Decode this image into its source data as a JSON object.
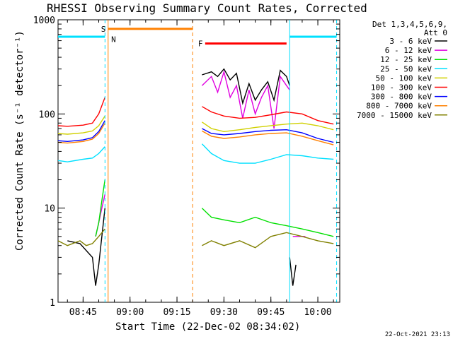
{
  "chart_data": {
    "type": "line",
    "title": "RHESSI Observing Summary Count Rates, Corrected",
    "xlabel": "Start Time (22-Dec-02 08:34:02)",
    "ylabel": "Corrected Count Rate (s⁻¹ detector⁻¹)",
    "ylog": true,
    "xlim": [
      "08:37",
      "10:07"
    ],
    "ylim": [
      1,
      1000
    ],
    "x_ticks": [
      "08:45",
      "09:00",
      "09:15",
      "09:30",
      "09:45",
      "10:00"
    ],
    "y_ticks": [
      "1",
      "10",
      "100",
      "1000"
    ],
    "legend_header": [
      "Det 1,3,4,5,6,9,",
      "Att 0"
    ],
    "legend_position": "outside-right",
    "series": [
      {
        "name": "3 - 6 keV",
        "color": "#000000",
        "segments": [
          {
            "x": [
              "08:40",
              "08:44",
              "08:48",
              "08:49",
              "08:50",
              "08:51",
              "08:52"
            ],
            "y": [
              4.5,
              4.2,
              3.0,
              1.5,
              2.5,
              5,
              10
            ]
          },
          {
            "x": [
              "09:23",
              "09:26",
              "09:28",
              "09:30",
              "09:32",
              "09:34",
              "09:36",
              "09:38",
              "09:40",
              "09:42",
              "09:44",
              "09:46",
              "09:48",
              "09:50",
              "09:51"
            ],
            "y": [
              260,
              280,
              250,
              300,
              230,
              270,
              130,
              210,
              140,
              180,
              220,
              140,
              290,
              250,
              200
            ]
          },
          {
            "x": [
              "09:51",
              "09:52",
              "09:53"
            ],
            "y": [
              3,
              1.5,
              2.5
            ]
          }
        ]
      },
      {
        "name": "6 - 12 keV",
        "color": "#e000e0",
        "segments": [
          {
            "x": [
              "08:49",
              "08:50",
              "08:51",
              "08:52"
            ],
            "y": [
              5,
              7,
              10,
              14
            ]
          },
          {
            "x": [
              "09:23",
              "09:26",
              "09:28",
              "09:30",
              "09:32",
              "09:34",
              "09:36",
              "09:38",
              "09:40",
              "09:42",
              "09:44",
              "09:46",
              "09:48",
              "09:50",
              "09:51"
            ],
            "y": [
              200,
              250,
              170,
              280,
              150,
              200,
              90,
              180,
              100,
              150,
              200,
              70,
              250,
              200,
              180
            ]
          },
          {
            "x": [
              "09:52",
              "09:56"
            ],
            "y": [
              5,
              5
            ]
          }
        ]
      },
      {
        "name": "12 - 25 keV",
        "color": "#00e000",
        "segments": [
          {
            "x": [
              "08:49",
              "08:50",
              "08:51",
              "08:52"
            ],
            "y": [
              5,
              7,
              12,
              20
            ]
          },
          {
            "x": [
              "09:23",
              "09:26",
              "09:30",
              "09:35",
              "09:40",
              "09:45",
              "09:50",
              "09:55",
              "10:00",
              "10:05"
            ],
            "y": [
              10,
              8,
              7.5,
              7,
              8,
              7,
              6.5,
              6,
              5.5,
              5
            ]
          }
        ]
      },
      {
        "name": "25 - 50 keV",
        "color": "#00e0ff",
        "segments": [
          {
            "x": [
              "08:37",
              "08:40",
              "08:45",
              "08:48",
              "08:50",
              "08:52"
            ],
            "y": [
              32,
              31,
              33,
              34,
              38,
              45
            ]
          },
          {
            "x": [
              "09:23",
              "09:26",
              "09:30",
              "09:35",
              "09:40",
              "09:45",
              "09:50",
              "09:55",
              "10:00",
              "10:05"
            ],
            "y": [
              48,
              38,
              32,
              30,
              30,
              33,
              37,
              36,
              34,
              33
            ]
          }
        ]
      },
      {
        "name": "50 - 100 keV",
        "color": "#d0d000",
        "segments": [
          {
            "x": [
              "08:37",
              "08:40",
              "08:45",
              "08:48",
              "08:50",
              "08:52"
            ],
            "y": [
              62,
              61,
              63,
              66,
              75,
              95
            ]
          },
          {
            "x": [
              "09:23",
              "09:26",
              "09:30",
              "09:35",
              "09:40",
              "09:45",
              "09:50",
              "09:55",
              "10:00",
              "10:05"
            ],
            "y": [
              82,
              70,
              65,
              68,
              72,
              75,
              78,
              80,
              75,
              68
            ]
          }
        ]
      },
      {
        "name": "100 - 300 keV",
        "color": "#ff0000",
        "segments": [
          {
            "x": [
              "08:37",
              "08:40",
              "08:45",
              "08:48",
              "08:50",
              "08:52"
            ],
            "y": [
              75,
              74,
              76,
              80,
              100,
              150
            ]
          },
          {
            "x": [
              "09:23",
              "09:26",
              "09:30",
              "09:35",
              "09:40",
              "09:45",
              "09:50",
              "09:55",
              "10:00",
              "10:05"
            ],
            "y": [
              120,
              105,
              95,
              90,
              92,
              98,
              105,
              100,
              85,
              78
            ]
          }
        ]
      },
      {
        "name": "300 - 800 keV",
        "color": "#0000ff",
        "segments": [
          {
            "x": [
              "08:37",
              "08:40",
              "08:45",
              "08:48",
              "08:50",
              "08:52"
            ],
            "y": [
              52,
              51,
              53,
              56,
              65,
              85
            ]
          },
          {
            "x": [
              "09:23",
              "09:26",
              "09:30",
              "09:35",
              "09:40",
              "09:45",
              "09:50",
              "09:55",
              "10:00",
              "10:05"
            ],
            "y": [
              70,
              62,
              60,
              62,
              65,
              67,
              68,
              63,
              55,
              50
            ]
          }
        ]
      },
      {
        "name": "800 - 7000 keV",
        "color": "#ff8000",
        "segments": [
          {
            "x": [
              "08:37",
              "08:40",
              "08:45",
              "08:48",
              "08:50",
              "08:52"
            ],
            "y": [
              50,
              49,
              51,
              54,
              62,
              80
            ]
          },
          {
            "x": [
              "09:23",
              "09:26",
              "09:30",
              "09:35",
              "09:40",
              "09:45",
              "09:50",
              "09:55",
              "10:00",
              "10:05"
            ],
            "y": [
              66,
              58,
              55,
              57,
              60,
              62,
              63,
              58,
              52,
              47
            ]
          }
        ]
      },
      {
        "name": "7000 - 15000 keV",
        "color": "#808000",
        "segments": [
          {
            "x": [
              "08:37",
              "08:40",
              "08:44",
              "08:46",
              "08:48",
              "08:50",
              "08:52"
            ],
            "y": [
              4.5,
              4,
              4.5,
              4,
              4.2,
              5,
              6
            ]
          },
          {
            "x": [
              "09:23",
              "09:26",
              "09:30",
              "09:35",
              "09:40",
              "09:45",
              "09:50",
              "09:55",
              "10:00",
              "10:05"
            ],
            "y": [
              4,
              4.5,
              4,
              4.5,
              3.8,
              5,
              5.5,
              5,
              4.5,
              4.2
            ]
          }
        ]
      }
    ],
    "flag_bars": [
      {
        "label": "S",
        "color": "#ff8000",
        "x": [
          "08:53",
          "09:20"
        ],
        "y": 800
      },
      {
        "label": "F",
        "color": "#ff0000",
        "x": [
          "09:24",
          "09:50"
        ],
        "y": 560
      }
    ],
    "bar_marks": [
      {
        "label": "",
        "color": "#00e0ff",
        "x": [
          "08:37",
          "08:52"
        ],
        "y": 660
      },
      {
        "label": "",
        "color": "#00e0ff",
        "x": [
          "09:51",
          "10:06"
        ],
        "y": 660
      }
    ],
    "flag_labels": [
      {
        "label": "N",
        "color": "#00e0ff",
        "x": "08:54",
        "y": 620
      }
    ],
    "vlines": [
      {
        "x": "08:52",
        "color": "#00e0ff",
        "style": "dashed"
      },
      {
        "x": "08:53",
        "color": "#ff8000",
        "style": "solid"
      },
      {
        "x": "09:20",
        "color": "#ff8000",
        "style": "dashed"
      },
      {
        "x": "09:51",
        "color": "#00e0ff",
        "style": "solid"
      },
      {
        "x": "10:06",
        "color": "#00e0ff",
        "style": "dashed"
      }
    ]
  },
  "footer_timestamp": "22-Oct-2021 23:13"
}
